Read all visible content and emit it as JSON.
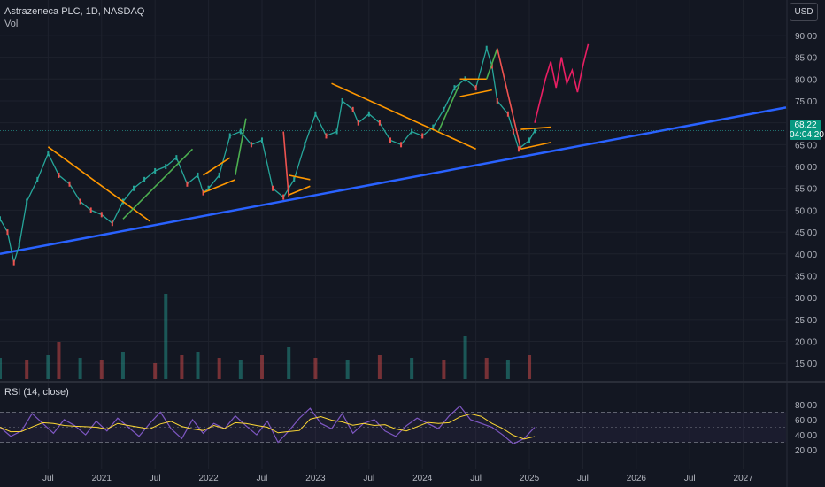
{
  "header": {
    "title": "Astrazeneca PLC, 1D, NASDAQ",
    "vol_label": "Vol",
    "currency": "USD",
    "rsi_label": "RSI (14, close)",
    "last_price": "68.22",
    "countdown": "04:04:20"
  },
  "colors": {
    "background": "#131722",
    "grid": "#1e222d",
    "axis_text": "#b2b5be",
    "up": "#26a69a",
    "down": "#ef5350",
    "trendline": "#2962ff",
    "annotation_orange": "#ff9800",
    "annotation_green": "#4caf50",
    "annotation_red": "#ef5350",
    "projection": "#e91e63",
    "rsi_line": "#7e57c2",
    "rsi_ma": "#fdd835"
  },
  "chart_data": {
    "type": "line",
    "title": "Astrazeneca PLC, 1D, NASDAQ",
    "price_axis": {
      "ticks": [
        15,
        20,
        25,
        30,
        35,
        40,
        45,
        50,
        55,
        60,
        65,
        70,
        75,
        80,
        85,
        90
      ],
      "range": [
        11,
        92
      ],
      "last_price": 68.22
    },
    "x_axis": {
      "ticks": [
        "Jul",
        "2021",
        "Jul",
        "2022",
        "Jul",
        "2023",
        "Jul",
        "2024",
        "Jul",
        "2025",
        "Jul",
        "2026",
        "Jul",
        "2027"
      ],
      "tick_years": [
        2020.5,
        2021.0,
        2021.5,
        2022.0,
        2022.5,
        2023.0,
        2023.5,
        2024.0,
        2024.5,
        2025.0,
        2025.5,
        2026.0,
        2026.5,
        2027.0
      ],
      "range": [
        2020.05,
        2027.4
      ]
    },
    "price_series": {
      "name": "AZN",
      "x": [
        2020.05,
        2020.12,
        2020.18,
        2020.23,
        2020.3,
        2020.4,
        2020.5,
        2020.6,
        2020.7,
        2020.8,
        2020.9,
        2021.0,
        2021.1,
        2021.2,
        2021.3,
        2021.4,
        2021.5,
        2021.6,
        2021.7,
        2021.8,
        2021.9,
        2021.95,
        2022.0,
        2022.1,
        2022.2,
        2022.3,
        2022.4,
        2022.5,
        2022.6,
        2022.7,
        2022.75,
        2022.8,
        2022.9,
        2023.0,
        2023.1,
        2023.2,
        2023.25,
        2023.35,
        2023.4,
        2023.5,
        2023.6,
        2023.7,
        2023.8,
        2023.9,
        2024.0,
        2024.1,
        2024.2,
        2024.3,
        2024.4,
        2024.5,
        2024.6,
        2024.65,
        2024.7,
        2024.8,
        2024.85,
        2024.9,
        2025.0,
        2025.05
      ],
      "values": [
        48,
        45,
        38,
        42,
        52,
        57,
        63,
        58,
        56,
        52,
        50,
        49,
        47,
        52,
        55,
        57,
        59,
        60,
        62,
        56,
        58,
        54,
        55,
        58,
        67,
        68,
        65,
        66,
        55,
        53,
        55,
        57,
        65,
        72,
        67,
        68,
        75,
        73,
        70,
        72,
        70,
        66,
        65,
        68,
        67,
        69,
        73,
        78,
        80,
        78,
        87,
        83,
        75,
        72,
        68,
        64,
        66,
        68.22
      ]
    },
    "projection_series": {
      "name": "Projection",
      "x": [
        2025.05,
        2025.1,
        2025.15,
        2025.2,
        2025.25,
        2025.3,
        2025.35,
        2025.4,
        2025.45,
        2025.5,
        2025.55
      ],
      "values": [
        70,
        75,
        80,
        84,
        78,
        85,
        79,
        82,
        77,
        83,
        88
      ]
    },
    "volume_series": {
      "name": "Vol",
      "x": [
        2020.05,
        2020.3,
        2020.5,
        2020.6,
        2020.8,
        2021.0,
        2021.2,
        2021.5,
        2021.6,
        2021.75,
        2021.9,
        2022.1,
        2022.3,
        2022.5,
        2022.75,
        2023.0,
        2023.3,
        2023.6,
        2023.9,
        2024.2,
        2024.4,
        2024.6,
        2024.8,
        2025.0
      ],
      "values": [
        8,
        7,
        9,
        14,
        8,
        7,
        10,
        6,
        32,
        9,
        10,
        8,
        7,
        9,
        12,
        8,
        7,
        9,
        8,
        7,
        16,
        8,
        7,
        9
      ]
    },
    "rsi_series": {
      "name": "RSI (14, close)",
      "x": [
        2020.05,
        2020.15,
        2020.25,
        2020.35,
        2020.45,
        2020.55,
        2020.65,
        2020.75,
        2020.85,
        2020.95,
        2021.05,
        2021.15,
        2021.25,
        2021.35,
        2021.45,
        2021.55,
        2021.65,
        2021.75,
        2021.85,
        2021.95,
        2022.05,
        2022.15,
        2022.25,
        2022.35,
        2022.45,
        2022.55,
        2022.65,
        2022.75,
        2022.85,
        2022.95,
        2023.05,
        2023.15,
        2023.25,
        2023.35,
        2023.45,
        2023.55,
        2023.65,
        2023.75,
        2023.85,
        2023.95,
        2024.05,
        2024.15,
        2024.25,
        2024.35,
        2024.45,
        2024.55,
        2024.65,
        2024.75,
        2024.85,
        2024.95,
        2025.05
      ],
      "values": [
        50,
        38,
        45,
        68,
        55,
        42,
        60,
        52,
        40,
        58,
        45,
        62,
        50,
        38,
        55,
        70,
        48,
        35,
        60,
        42,
        55,
        48,
        65,
        52,
        40,
        58,
        30,
        45,
        62,
        75,
        55,
        48,
        68,
        42,
        55,
        60,
        45,
        38,
        52,
        62,
        55,
        48,
        65,
        78,
        60,
        55,
        50,
        40,
        28,
        35,
        50
      ]
    },
    "rsi_axis": {
      "ticks": [
        20,
        40,
        60,
        80
      ],
      "range": [
        12,
        88
      ],
      "bands": [
        30,
        70
      ]
    }
  }
}
